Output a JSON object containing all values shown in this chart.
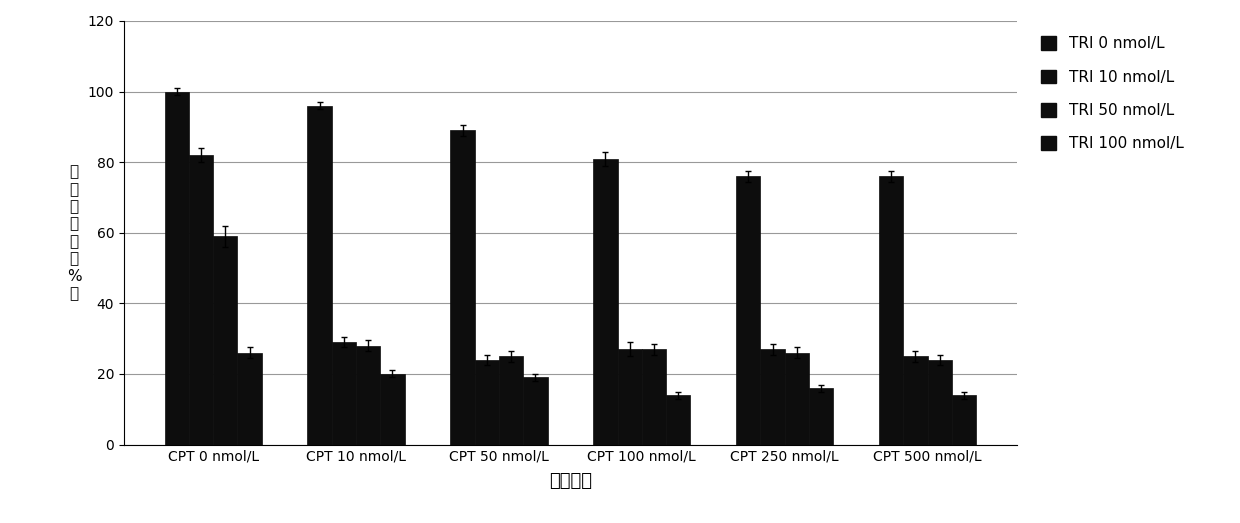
{
  "categories": [
    "CPT 0 nmol/L",
    "CPT 10 nmol/L",
    "CPT 50 nmol/L",
    "CPT 100 nmol/L",
    "CPT 250 nmol/L",
    "CPT 500 nmol/L"
  ],
  "series_labels": [
    "TRI 0 nmol/L",
    "TRI 10 nmol/L",
    "TRI 50 nmol/L",
    "TRI 100 nmol/L"
  ],
  "values": [
    [
      100,
      96,
      89,
      81,
      76,
      76
    ],
    [
      82,
      29,
      24,
      27,
      27,
      25
    ],
    [
      59,
      28,
      25,
      27,
      26,
      24
    ],
    [
      26,
      20,
      19,
      14,
      16,
      14
    ]
  ],
  "errors": [
    [
      1.0,
      1.0,
      1.5,
      2.0,
      1.5,
      1.5
    ],
    [
      2.0,
      1.5,
      1.5,
      2.0,
      1.5,
      1.5
    ],
    [
      3.0,
      1.5,
      1.5,
      1.5,
      1.5,
      1.5
    ],
    [
      1.5,
      1.0,
      1.0,
      1.0,
      1.0,
      1.0
    ]
  ],
  "ylim": [
    0,
    120
  ],
  "yticks": [
    0,
    20,
    40,
    60,
    80,
    100,
    120
  ],
  "ylabel_chars": [
    "细",
    "胞",
    "存",
    "活",
    "率",
    "（",
    "%",
    "）"
  ],
  "xlabel": "药物浓度",
  "background_color": "#ffffff",
  "grid_color": "#999999",
  "legend_fontsize": 11,
  "tick_fontsize": 10,
  "xlabel_fontsize": 13
}
